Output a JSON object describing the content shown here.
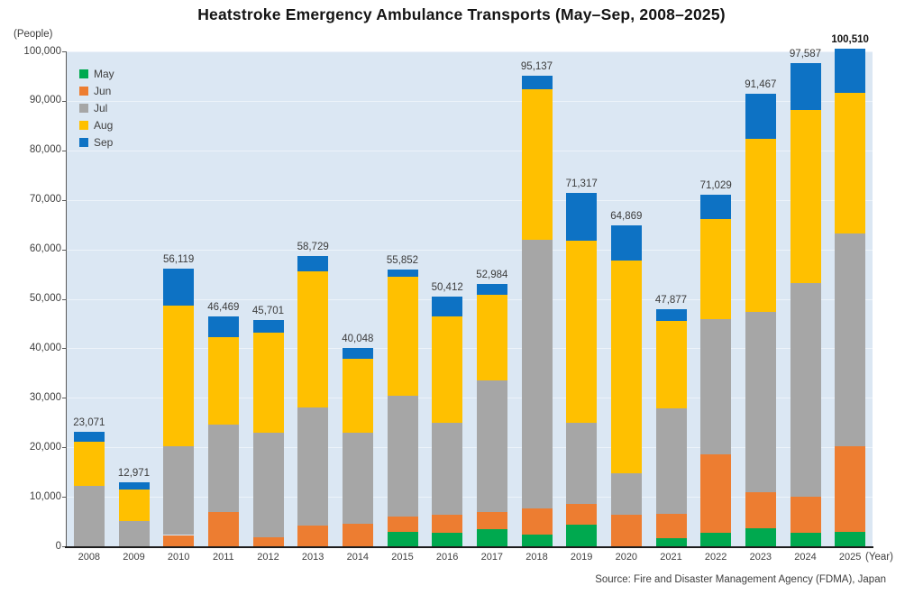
{
  "chart": {
    "title": "Heatstroke Emergency Ambulance Transports (May–Sep, 2008–2025)",
    "y_unit_label": "(People)",
    "x_unit_label": "(Year)",
    "source_note": "Source: Fire and Disaster Management Agency (FDMA), Japan"
  },
  "colors": {
    "page_bg": "#ffffff",
    "plot_bg": "#dbe7f3",
    "gridline": "#edf3fa",
    "axis_text": "#3f3f3f",
    "title_text": "#141414",
    "may_green": "#00a94f",
    "jun_orange": "#ed7d31",
    "jul_gray": "#a6a6a6",
    "aug_yellow": "#ffc000",
    "sep_blue": "#0d72c4"
  },
  "chart_data": {
    "type": "bar",
    "stacked": true,
    "title": "Heatstroke Emergency Ambulance Transports (May–Sep, 2008–2025)",
    "xlabel": "(Year)",
    "ylabel": "(People)",
    "ylim": [
      0,
      100000
    ],
    "ytick_step": 10000,
    "grid": true,
    "legend_position": "top-left",
    "categories": [
      "2008",
      "2009",
      "2010",
      "2011",
      "2012",
      "2013",
      "2014",
      "2015",
      "2016",
      "2017",
      "2018",
      "2019",
      "2020",
      "2021",
      "2022",
      "2023",
      "2024",
      "2025"
    ],
    "series": [
      {
        "name": "May",
        "color": "#00a94f",
        "values": [
          0,
          0,
          0,
          0,
          0,
          0,
          0,
          2904,
          2788,
          3401,
          2427,
          4448,
          0,
          1626,
          2668,
          3655,
          2799,
          2958
        ]
      },
      {
        "name": "Jun",
        "color": "#ed7d31",
        "values": [
          0,
          0,
          2276,
          6980,
          1837,
          4265,
          4634,
          3032,
          3558,
          3481,
          5269,
          4151,
          6336,
          4945,
          15969,
          7235,
          7275,
          17229
        ]
      },
      {
        "name": "Jul",
        "color": "#a6a6a6",
        "values": [
          12200,
          5046,
          17963,
          17566,
          21082,
          23699,
          18407,
          24567,
          18671,
          26702,
          54220,
          16431,
          8388,
          21372,
          27209,
          36549,
          43195,
          43100
        ]
      },
      {
        "name": "Aug",
        "color": "#ffc000",
        "values": [
          8840,
          6463,
          28448,
          17653,
          20334,
          27632,
          14891,
          23925,
          21383,
          17302,
          30410,
          36755,
          43060,
          17579,
          20252,
          34835,
          34874,
          28400
        ]
      },
      {
        "name": "Sep",
        "color": "#0d72c4",
        "values": [
          2031,
          1462,
          7432,
          4270,
          2448,
          3133,
          2116,
          1424,
          4012,
          2098,
          2811,
          9532,
          7085,
          2355,
          4931,
          9193,
          9444,
          8823
        ]
      }
    ],
    "totals": [
      23071,
      12971,
      56119,
      46469,
      45701,
      58729,
      40048,
      55852,
      50412,
      52984,
      95137,
      71317,
      64869,
      47877,
      71029,
      91467,
      97587,
      100510
    ],
    "emphasized_total_value": 100510
  }
}
